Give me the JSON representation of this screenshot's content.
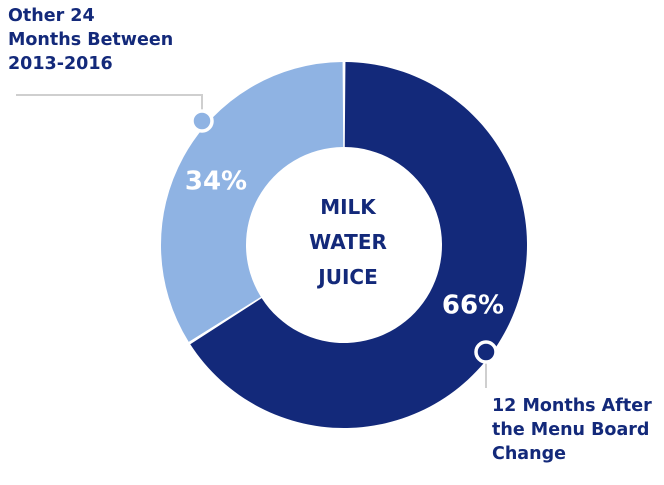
{
  "chart_data": {
    "type": "pie",
    "donut": true,
    "center_label": [
      "MILK",
      "WATER",
      "JUICE"
    ],
    "slices": [
      {
        "label_lines": [
          "12 Months After",
          "the Menu Board",
          "Change"
        ],
        "value": 66,
        "value_label": "66%",
        "color": "#13297a"
      },
      {
        "label_lines": [
          "Other 24",
          "Months Between",
          "2013-2016"
        ],
        "value": 34,
        "value_label": "34%",
        "color": "#8fb3e3"
      }
    ],
    "legend_placement": "callouts at top-left and bottom-right",
    "label_color": "#13297a"
  }
}
